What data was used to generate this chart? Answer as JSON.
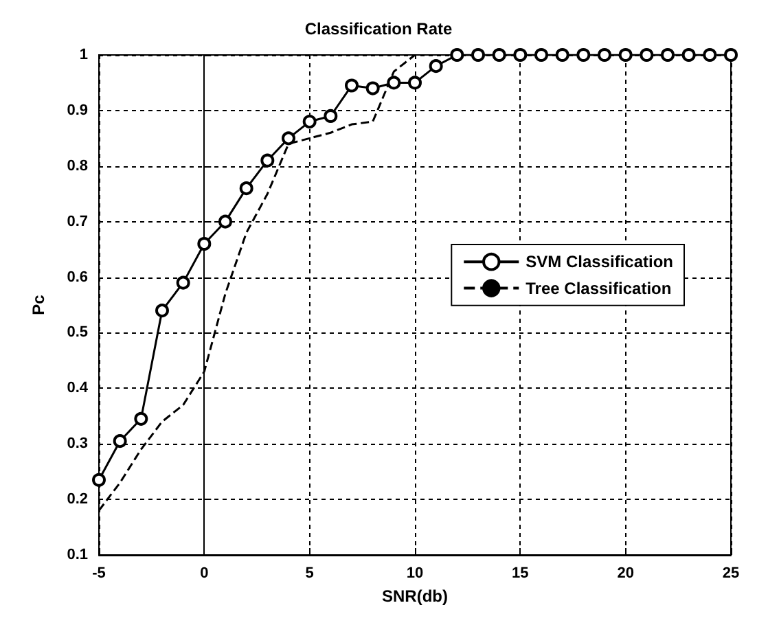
{
  "chart_data": {
    "type": "line",
    "title": "Classification Rate",
    "xlabel": "SNR(db)",
    "ylabel": "Pc",
    "xlim": [
      -5,
      25
    ],
    "xticks": [
      -5,
      0,
      5,
      10,
      15,
      20,
      25
    ],
    "ylim": [
      0.1,
      1
    ],
    "yticks": [
      0.1,
      0.2,
      0.3,
      0.4,
      0.5,
      0.6,
      0.7,
      0.8,
      0.9,
      1
    ],
    "grid": true,
    "legend": "right",
    "series": [
      {
        "name": "SVM Classification",
        "color": "#000000",
        "marker": "circle",
        "line_style": "solid",
        "x": [
          -5,
          -4,
          -3,
          -2,
          -1,
          0,
          1,
          2,
          3,
          4,
          5,
          6,
          7,
          8,
          9,
          10,
          11,
          12,
          13,
          14,
          15,
          16,
          17,
          18,
          19,
          20,
          21,
          22,
          23,
          24,
          25
        ],
        "values": [
          0.235,
          0.305,
          0.345,
          0.54,
          0.59,
          0.66,
          0.7,
          0.76,
          0.81,
          0.85,
          0.88,
          0.89,
          0.945,
          0.94,
          0.95,
          0.95,
          0.98,
          1,
          1,
          1,
          1,
          1,
          1,
          1,
          1,
          1,
          1,
          1,
          1,
          1,
          1
        ]
      },
      {
        "name": "Tree Classification",
        "color": "#000000",
        "marker": "none",
        "line_style": "dashed",
        "x": [
          -5,
          -4,
          -3,
          -2,
          -1,
          0,
          1,
          2,
          3,
          4,
          5,
          6,
          7,
          8,
          9,
          10
        ],
        "values": [
          0.18,
          0.23,
          0.29,
          0.34,
          0.37,
          0.43,
          0.57,
          0.68,
          0.75,
          0.84,
          0.85,
          0.86,
          0.875,
          0.88,
          0.97,
          1
        ]
      }
    ]
  }
}
